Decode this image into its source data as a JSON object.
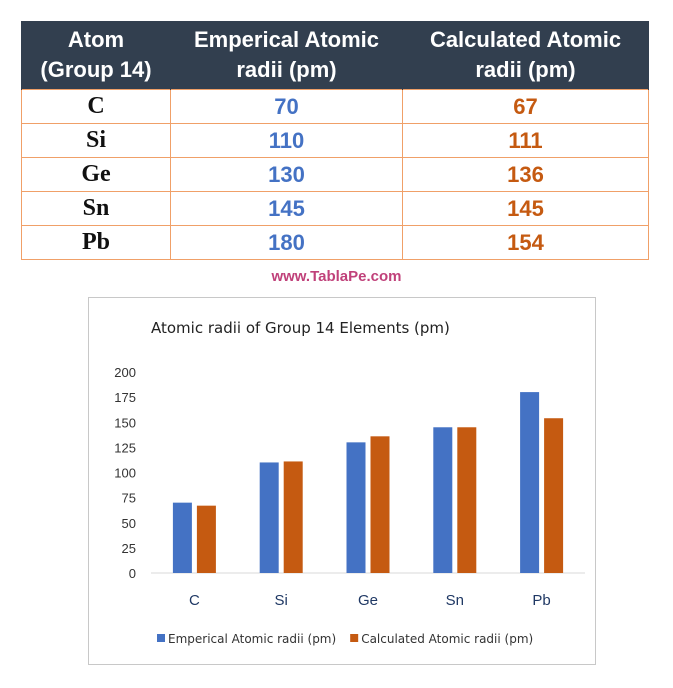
{
  "table": {
    "headers": [
      {
        "line1": "Atom",
        "line2": "(Group 14)"
      },
      {
        "line1": "Emperical Atomic",
        "line2": "radii (pm)"
      },
      {
        "line1": "Calculated Atomic",
        "line2": "radii (pm)"
      }
    ],
    "rows": [
      {
        "atom": "C",
        "empirical": "70",
        "calculated": "67"
      },
      {
        "atom": "Si",
        "empirical": "110",
        "calculated": "111"
      },
      {
        "atom": "Ge",
        "empirical": "130",
        "calculated": "136"
      },
      {
        "atom": "Sn",
        "empirical": "145",
        "calculated": "145"
      },
      {
        "atom": "Pb",
        "empirical": "180",
        "calculated": "154"
      }
    ]
  },
  "watermark": "www.TablaPe.com",
  "colors": {
    "header_bg": "#323f4f",
    "empirical": "#4472c4",
    "calculated": "#c55a11",
    "table_border": "#f0a068",
    "watermark": "#c0417a"
  },
  "chart_data": {
    "type": "bar",
    "title": "Atomic radii of Group 14 Elements (pm)",
    "categories": [
      "C",
      "Si",
      "Ge",
      "Sn",
      "Pb"
    ],
    "series": [
      {
        "name": "Emperical Atomic radii (pm)",
        "color": "#4472c4",
        "values": [
          70,
          110,
          130,
          145,
          180
        ]
      },
      {
        "name": "Calculated Atomic radii (pm)",
        "color": "#c55a11",
        "values": [
          67,
          111,
          136,
          145,
          154
        ]
      }
    ],
    "ylim": [
      0,
      200
    ],
    "yticks": [
      0,
      25,
      50,
      75,
      100,
      125,
      150,
      175,
      200
    ],
    "grid": false,
    "legend_position": "bottom"
  }
}
